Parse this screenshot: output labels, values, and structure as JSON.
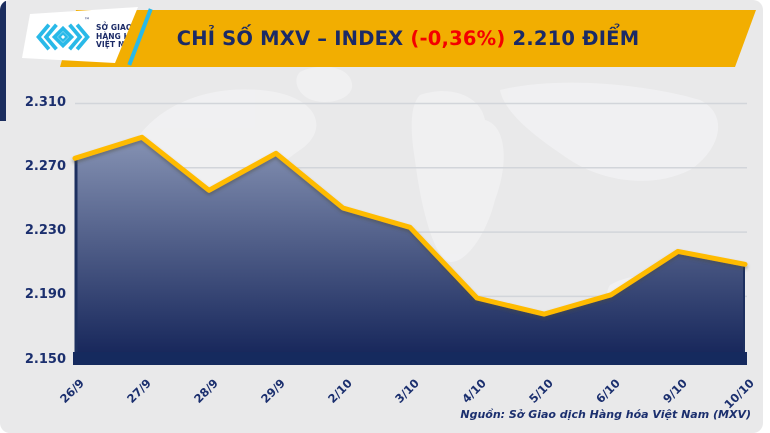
{
  "header": {
    "logo": {
      "line1": "SỞ GIAO DỊCH",
      "line2": "HÀNG HÓA",
      "line3": "VIỆT NAM",
      "trademark": "™"
    },
    "title": {
      "part1": "CHỈ SỐ MXV – INDEX ",
      "change": "(-0,36%)",
      "part2": " 2.210 ĐIỂM"
    }
  },
  "source": "Nguồn: Sở Giao dịch Hàng hóa Việt Nam (MXV)",
  "colors": {
    "background": "#e9e9ea",
    "banner_yellow": "#f2ae01",
    "navy": "#1b2f6e",
    "red": "#f40000",
    "cyan": "#29b9e8"
  },
  "chart_data": {
    "type": "area",
    "title": "CHỈ SỐ MXV – INDEX (-0,36%) 2.210 ĐIỂM",
    "x": [
      "26/9",
      "27/9",
      "28/9",
      "29/9",
      "2/10",
      "3/10",
      "4/10",
      "5/10",
      "6/10",
      "9/10",
      "10/10"
    ],
    "values": [
      2276,
      2289,
      2256,
      2279,
      2245,
      2233,
      2189,
      2179,
      2191,
      2218,
      2210
    ],
    "y_ticks": [
      {
        "label": "2.310",
        "value": 2310
      },
      {
        "label": "2.270",
        "value": 2270
      },
      {
        "label": "2.230",
        "value": 2230
      },
      {
        "label": "2.190",
        "value": 2190
      },
      {
        "label": "2.150",
        "value": 2150
      }
    ],
    "ylim": [
      2150,
      2310
    ],
    "xlabel": "",
    "ylabel": "",
    "grid": true,
    "legend": "none",
    "line_color": "#ffbb00",
    "fill_top": "#97a3c1",
    "fill_bottom": "#122257",
    "baseline_color": "#152a5e",
    "gridline_color": "#d2d5da"
  }
}
